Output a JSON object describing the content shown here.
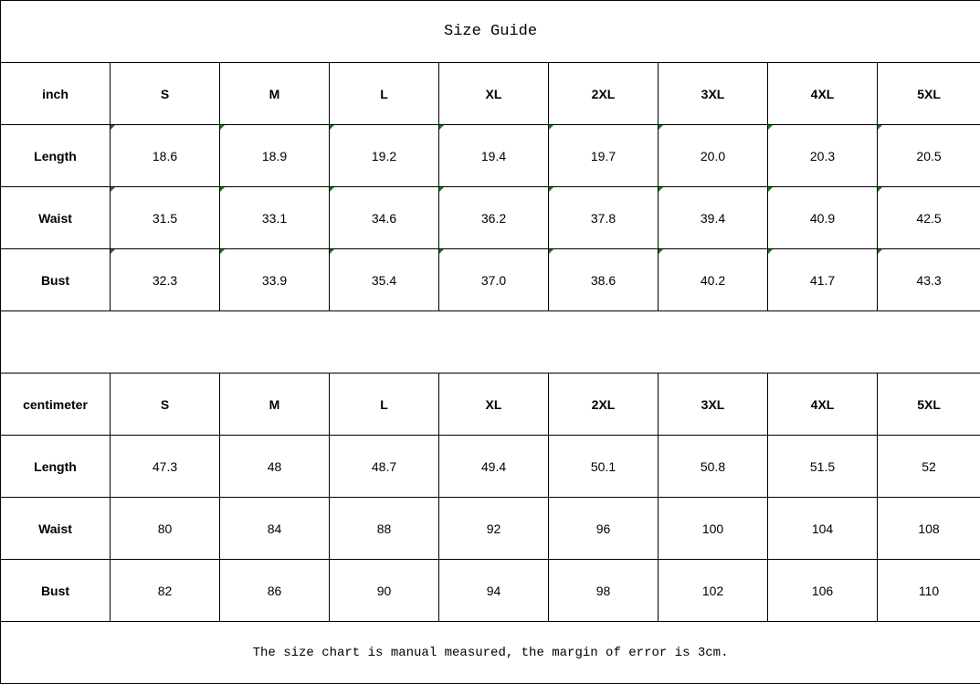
{
  "title": "Size Guide",
  "sizes": [
    "S",
    "M",
    "L",
    "XL",
    "2XL",
    "3XL",
    "4XL",
    "5XL"
  ],
  "inch": {
    "unit_label": "inch",
    "rows": [
      {
        "label": "Length",
        "values": [
          "18.6",
          "18.9",
          "19.2",
          "19.4",
          "19.7",
          "20.0",
          "20.3",
          "20.5"
        ]
      },
      {
        "label": "Waist",
        "values": [
          "31.5",
          "33.1",
          "34.6",
          "36.2",
          "37.8",
          "39.4",
          "40.9",
          "42.5"
        ]
      },
      {
        "label": "Bust",
        "values": [
          "32.3",
          "33.9",
          "35.4",
          "37.0",
          "38.6",
          "40.2",
          "41.7",
          "43.3"
        ]
      }
    ]
  },
  "centimeter": {
    "unit_label": "centimeter",
    "rows": [
      {
        "label": "Length",
        "values": [
          "47.3",
          "48",
          "48.7",
          "49.4",
          "50.1",
          "50.8",
          "51.5",
          "52"
        ]
      },
      {
        "label": "Waist",
        "values": [
          "80",
          "84",
          "88",
          "92",
          "96",
          "100",
          "104",
          "108"
        ]
      },
      {
        "label": "Bust",
        "values": [
          "82",
          "86",
          "90",
          "94",
          "98",
          "102",
          "106",
          "110"
        ]
      }
    ]
  },
  "note": "The size chart is manual measured, the margin of error is 3cm.",
  "colors": {
    "cell_marker": "#1a7a1a",
    "border": "#000000"
  }
}
